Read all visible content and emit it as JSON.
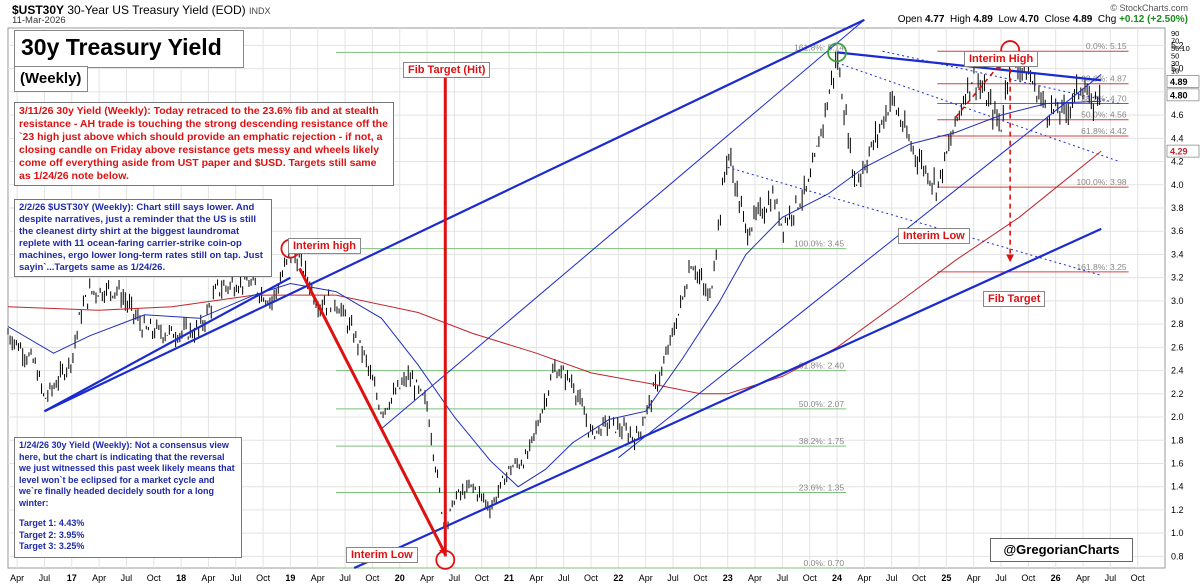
{
  "header": {
    "symbol": "$UST30Y",
    "description": "30-Year US Treasury Yield (EOD)",
    "exchange": "INDX",
    "date": "11-Mar-2026",
    "brand": "© StockCharts.com",
    "open_label": "Open",
    "open": "4.77",
    "high_label": "High",
    "high": "4.89",
    "low_label": "Low",
    "low": "4.70",
    "close_label": "Close",
    "close": "4.89",
    "chg_label": "Chg",
    "chg": "+0.12 (+2.50%)"
  },
  "title": "30y Treasury Yield",
  "subtitle": "(Weekly)",
  "notes": {
    "note_3_11": "3/11/26 30y Yield (Weekly): Today retraced to the 23.6% fib and at stealth resistance - AH trade is touching the strong descending resistance off the `23 high just above which should provide an emphatic rejection - if not, a closing candle on Friday above resistance gets messy and wheels likely come off everything aside from UST paper and $USD. Targets still same as 1/24/26 note below.",
    "note_2_2": "2/2/26 $UST30Y (Weekly): Chart still says lower. And despite narratives, just a reminder that the US is still the cleanest dirty shirt at the biggest laundromat replete with 11 ocean-faring carrier-strike coin-op machines, ergo lower long-term rates still on tap. Just sayin`...Targets same as 1/24/26.",
    "note_1_24_intro": "1/24/26 30y Yield (Weekly): Not a consensus view here, but the chart is indicating that the reversal we just witnessed this past week likely means that level won`t be eclipsed for a market cycle and we`re finally headed decidely south for a long winter:",
    "target1": "Target 1: 4.43%",
    "target2": "Target 2: 3.95%",
    "target3": "Target 3: 3.25%"
  },
  "callouts": {
    "fib_target_hit": "Fib Target (Hit)",
    "interim_high_left": "Interim high",
    "interim_low_left": "Interim Low",
    "interim_high_right": "Interim High",
    "interim_low_right": "Interim Low",
    "fib_target": "Fib Target"
  },
  "watermark": "@GregorianCharts",
  "colors": {
    "price": "#000000",
    "ma_fast": "#1f2fb8",
    "ma_slow": "#c0262d",
    "trendline": "#1b2bd0",
    "fib_left": "#7fbf7f",
    "fib_right": "#d64040",
    "annotation": "#dd1111",
    "grid": "#e3e3e3"
  },
  "chart_data": {
    "type": "line",
    "series_kind": "weekly OHLC bars",
    "x_axis": {
      "tick_labels": [
        "Apr",
        "Jul",
        "17",
        "Apr",
        "Jul",
        "Oct",
        "18",
        "Apr",
        "Jul",
        "Oct",
        "19",
        "Apr",
        "Jul",
        "Oct",
        "20",
        "Apr",
        "Jul",
        "Oct",
        "21",
        "Apr",
        "Jul",
        "Oct",
        "22",
        "Apr",
        "Jul",
        "Oct",
        "23",
        "Apr",
        "Jul",
        "Oct",
        "24",
        "Apr",
        "Jul",
        "Oct",
        "25",
        "Apr",
        "Jul",
        "Oct",
        "26",
        "Apr",
        "Jul",
        "Oct"
      ],
      "range": [
        "2016-03",
        "2026-10"
      ]
    },
    "y_axis": {
      "ticks": [
        "0.8",
        "1.0",
        "1.2",
        "1.4",
        "1.6",
        "1.8",
        "2.0",
        "2.2",
        "2.4",
        "2.6",
        "2.8",
        "3.0",
        "3.2",
        "3.4",
        "3.6",
        "3.8",
        "4.0",
        "4.2",
        "4.4",
        "4.6",
        "4.8",
        "5.0",
        "5.2"
      ],
      "range": [
        0.7,
        5.35
      ],
      "side": "right"
    },
    "price_badges": {
      "last": "4.89",
      "prev": "4.80",
      "ma_slow_value": "4.29",
      "top_scale": [
        "90",
        "70",
        "56.10",
        "50",
        "30",
        "10"
      ]
    },
    "price_path": [
      [
        "2016-03",
        2.72
      ],
      [
        "2016-06",
        2.45
      ],
      [
        "2016-07",
        2.15
      ],
      [
        "2016-08",
        2.26
      ],
      [
        "2016-10",
        2.5
      ],
      [
        "2016-11",
        2.9
      ],
      [
        "2016-12",
        3.08
      ],
      [
        "2017-03",
        3.1
      ],
      [
        "2017-06",
        2.75
      ],
      [
        "2017-09",
        2.72
      ],
      [
        "2017-12",
        2.74
      ],
      [
        "2018-02",
        3.1
      ],
      [
        "2018-05",
        3.18
      ],
      [
        "2018-08",
        3.0
      ],
      [
        "2018-10",
        3.4
      ],
      [
        "2018-11",
        3.35
      ],
      [
        "2019-01",
        2.98
      ],
      [
        "2019-03",
        3.0
      ],
      [
        "2019-06",
        2.55
      ],
      [
        "2019-08",
        2.05
      ],
      [
        "2019-09",
        2.15
      ],
      [
        "2019-11",
        2.35
      ],
      [
        "2020-01",
        2.1
      ],
      [
        "2020-03",
        1.0
      ],
      [
        "2020-04",
        1.3
      ],
      [
        "2020-06",
        1.4
      ],
      [
        "2020-08",
        1.22
      ],
      [
        "2020-10",
        1.55
      ],
      [
        "2020-12",
        1.65
      ],
      [
        "2021-03",
        2.42
      ],
      [
        "2021-05",
        2.3
      ],
      [
        "2021-07",
        1.85
      ],
      [
        "2021-09",
        1.95
      ],
      [
        "2021-12",
        1.82
      ],
      [
        "2022-03",
        2.45
      ],
      [
        "2022-05",
        3.0
      ],
      [
        "2022-06",
        3.35
      ],
      [
        "2022-08",
        3.0
      ],
      [
        "2022-10",
        4.3
      ],
      [
        "2022-12",
        3.6
      ],
      [
        "2023-03",
        3.9
      ],
      [
        "2023-04",
        3.65
      ],
      [
        "2023-07",
        4.0
      ],
      [
        "2023-10",
        5.1
      ],
      [
        "2023-12",
        4.0
      ],
      [
        "2024-02",
        4.35
      ],
      [
        "2024-04",
        4.75
      ],
      [
        "2024-06",
        4.35
      ],
      [
        "2024-08",
        4.1
      ],
      [
        "2024-09",
        3.98
      ],
      [
        "2024-12",
        4.78
      ],
      [
        "2025-01",
        4.95
      ],
      [
        "2025-04",
        4.5
      ],
      [
        "2025-05",
        5.1
      ],
      [
        "2025-07",
        4.95
      ],
      [
        "2025-09",
        4.65
      ],
      [
        "2025-11",
        4.62
      ],
      [
        "2026-01",
        4.88
      ],
      [
        "2026-02",
        4.63
      ],
      [
        "2026-03",
        4.89
      ]
    ],
    "ma_fast_path": [
      [
        "2016-03",
        2.78
      ],
      [
        "2016-08",
        2.55
      ],
      [
        "2016-12",
        2.7
      ],
      [
        "2017-06",
        2.88
      ],
      [
        "2017-12",
        2.85
      ],
      [
        "2018-06",
        3.05
      ],
      [
        "2018-10",
        3.15
      ],
      [
        "2019-03",
        3.08
      ],
      [
        "2019-08",
        2.85
      ],
      [
        "2019-12",
        2.45
      ],
      [
        "2020-04",
        2.0
      ],
      [
        "2020-08",
        1.62
      ],
      [
        "2020-11",
        1.4
      ],
      [
        "2021-02",
        1.55
      ],
      [
        "2021-05",
        1.78
      ],
      [
        "2021-09",
        1.98
      ],
      [
        "2022-01",
        2.05
      ],
      [
        "2022-05",
        2.5
      ],
      [
        "2022-09",
        2.98
      ],
      [
        "2022-12",
        3.4
      ],
      [
        "2023-04",
        3.72
      ],
      [
        "2023-09",
        3.92
      ],
      [
        "2024-01",
        4.15
      ],
      [
        "2024-06",
        4.35
      ],
      [
        "2024-11",
        4.45
      ],
      [
        "2025-04",
        4.6
      ],
      [
        "2025-09",
        4.7
      ],
      [
        "2026-03",
        4.72
      ]
    ],
    "ma_slow_path": [
      [
        "2016-03",
        2.95
      ],
      [
        "2017-01",
        2.92
      ],
      [
        "2017-09",
        2.95
      ],
      [
        "2018-06",
        3.05
      ],
      [
        "2019-03",
        3.05
      ],
      [
        "2019-12",
        2.9
      ],
      [
        "2020-06",
        2.72
      ],
      [
        "2021-01",
        2.55
      ],
      [
        "2021-07",
        2.38
      ],
      [
        "2022-02",
        2.28
      ],
      [
        "2022-07",
        2.2
      ],
      [
        "2022-10",
        2.2
      ],
      [
        "2023-04",
        2.35
      ],
      [
        "2023-10",
        2.6
      ],
      [
        "2024-05",
        3.0
      ],
      [
        "2024-11",
        3.35
      ],
      [
        "2025-06",
        3.72
      ],
      [
        "2025-12",
        4.1
      ],
      [
        "2026-03",
        4.29
      ]
    ],
    "fib_levels_left": [
      {
        "label": "161.8%: 5.14",
        "value": 5.14
      },
      {
        "label": "100.0%: 3.45",
        "value": 3.45
      },
      {
        "label": "61.8%: 2.40",
        "value": 2.4
      },
      {
        "label": "50.0%: 2.07",
        "value": 2.07
      },
      {
        "label": "38.2%: 1.75",
        "value": 1.75
      },
      {
        "label": "23.6%: 1.35",
        "value": 1.35
      },
      {
        "label": "0.0%: 0.70",
        "value": 0.7
      }
    ],
    "fib_levels_right": [
      {
        "label": "0.0%: 5.15",
        "value": 5.15
      },
      {
        "label": "23.6%: 4.87",
        "value": 4.87
      },
      {
        "label": "38.2%: 4.70",
        "value": 4.7
      },
      {
        "label": "50.0%: 4.56",
        "value": 4.56
      },
      {
        "label": "61.8%: 4.42",
        "value": 4.42
      },
      {
        "label": "100.0%: 3.98",
        "value": 3.98
      },
      {
        "label": "161.8%: 3.25",
        "value": 3.25
      }
    ],
    "trendlines": [
      {
        "from": [
          "2016-07",
          2.05
        ],
        "to": [
          "2018-10",
          3.2
        ]
      },
      {
        "from": [
          "2016-07",
          2.05
        ],
        "to": [
          "2024-01",
          5.42
        ]
      },
      {
        "from": [
          "2019-05",
          0.7
        ],
        "to": [
          "2026-03",
          3.62
        ]
      },
      {
        "from": [
          "2023-10",
          5.14
        ],
        "to": [
          "2026-03",
          4.9
        ]
      },
      {
        "from": [
          "2021-10",
          1.65
        ],
        "to": [
          "2026-03",
          4.95
        ]
      },
      {
        "from": [
          "2019-08",
          1.9
        ],
        "to": [
          "2024-01",
          5.42
        ]
      },
      {
        "from": [
          "2022-10",
          4.15
        ],
        "to": [
          "2026-03",
          3.22
        ],
        "dashed": true
      },
      {
        "from": [
          "2023-10",
          5.05
        ],
        "to": [
          "2026-05",
          4.2
        ],
        "dashed": true
      },
      {
        "from": [
          "2024-03",
          5.15
        ],
        "to": [
          "2026-05",
          4.7
        ],
        "dashed": true
      }
    ],
    "annotations": [
      {
        "kind": "arrow",
        "from": [
          "2018-11",
          3.28
        ],
        "to": [
          "2020-03",
          0.82
        ]
      },
      {
        "kind": "arrow",
        "from": [
          "2020-03",
          0.8
        ],
        "to": [
          "2020-03",
          5.02
        ]
      },
      {
        "kind": "arrow_dashed",
        "from": [
          "2025-05",
          5.0
        ],
        "to": [
          "2025-05",
          3.35
        ]
      },
      {
        "kind": "arrow_dashed",
        "from": [
          "2024-11",
          4.58
        ],
        "to": [
          "2025-04",
          5.05
        ]
      },
      {
        "kind": "circle",
        "at": [
          "2018-10",
          3.45
        ],
        "color": "red"
      },
      {
        "kind": "circle",
        "at": [
          "2020-03",
          0.77
        ],
        "color": "red"
      },
      {
        "kind": "circle",
        "at": [
          "2025-05",
          5.16
        ],
        "color": "red"
      },
      {
        "kind": "circle",
        "at": [
          "2023-10",
          5.14
        ],
        "color": "green"
      }
    ],
    "grid": true,
    "legend": "none"
  }
}
